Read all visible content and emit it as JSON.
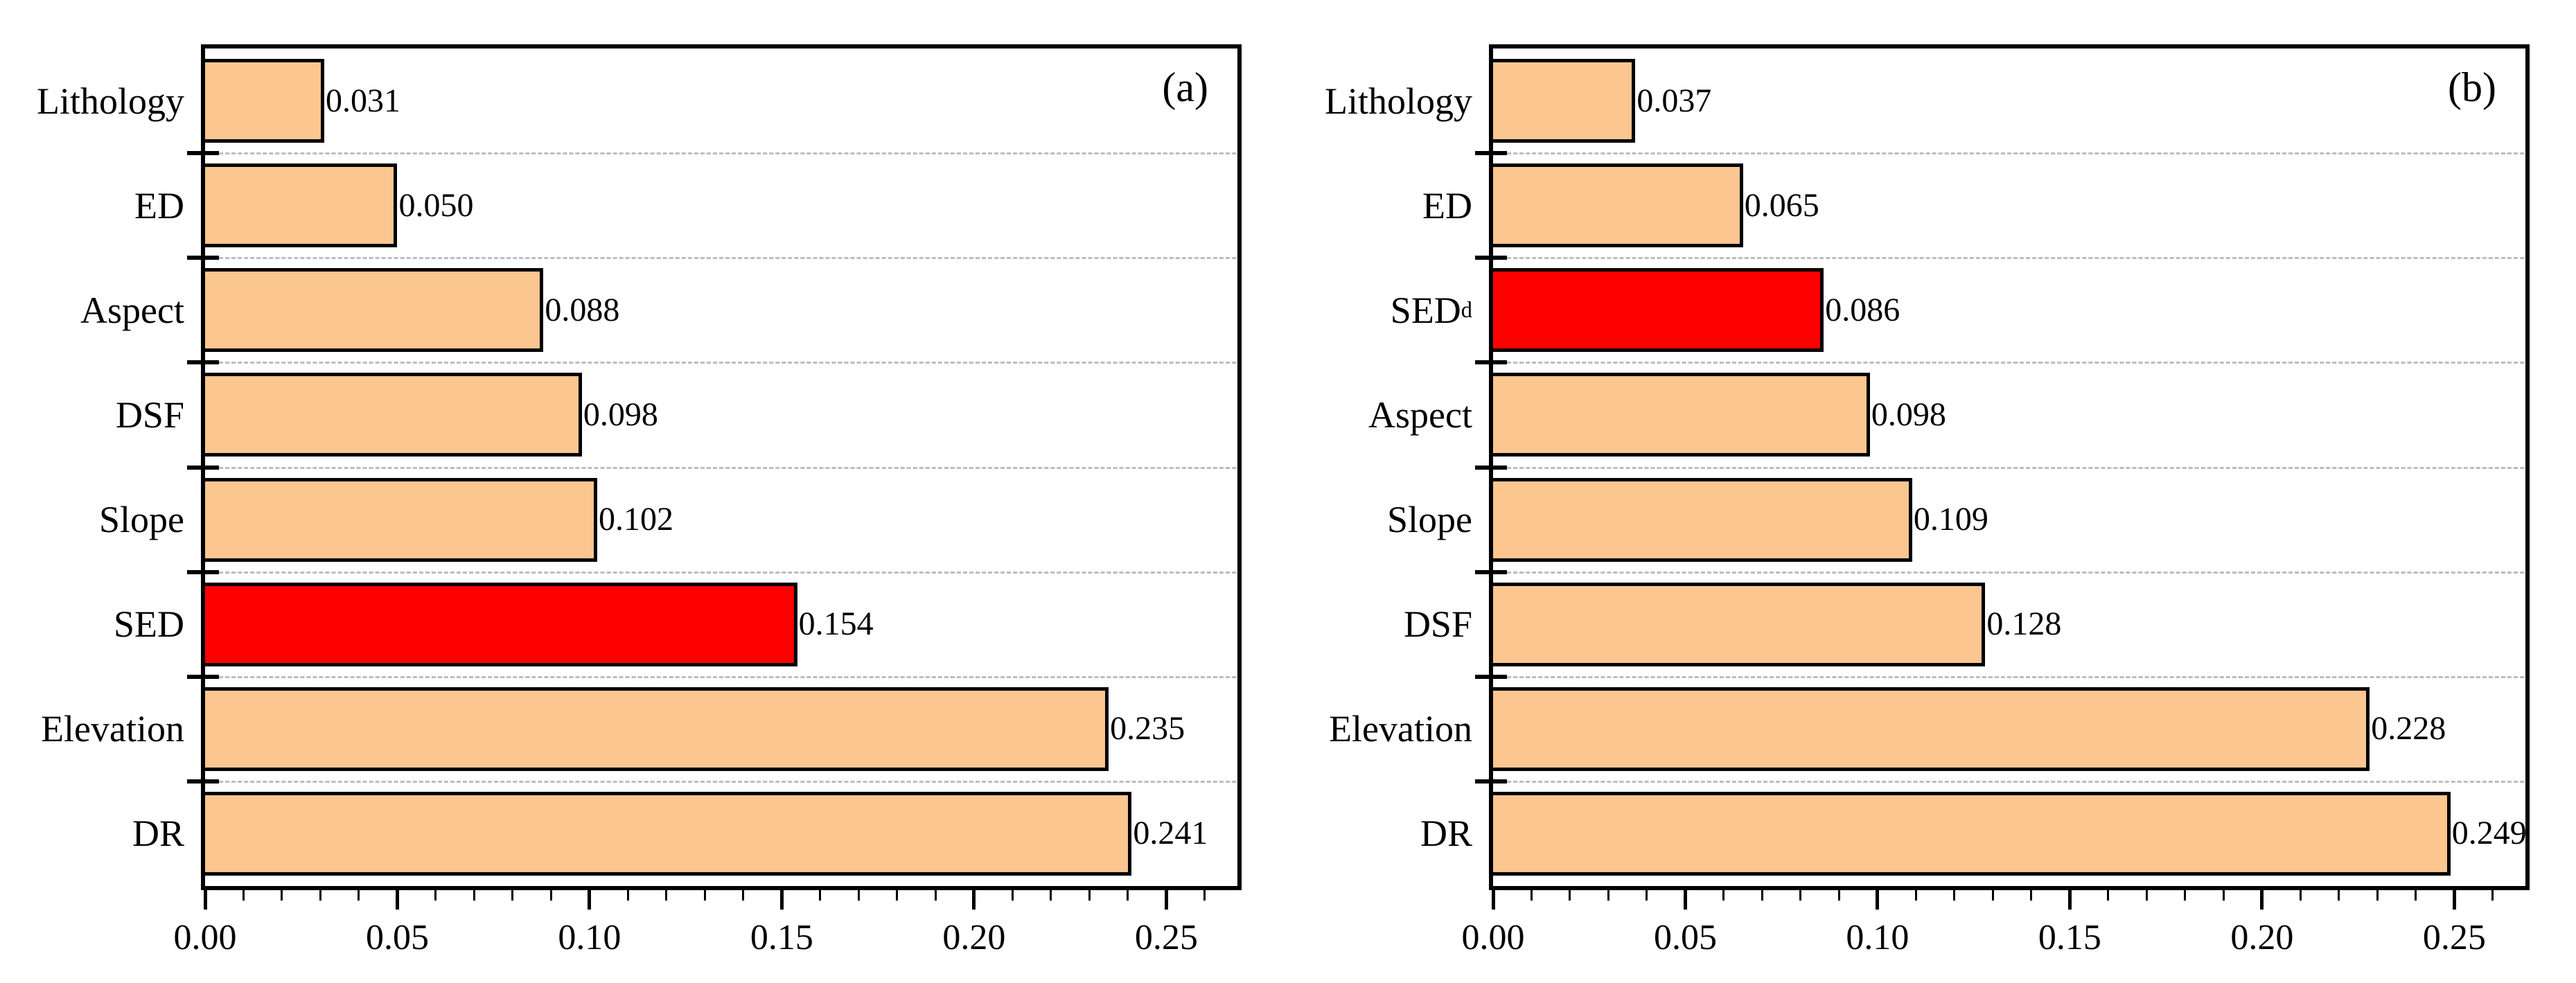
{
  "figure": {
    "background": "#ffffff"
  },
  "style": {
    "bar_fill": "#FBC690",
    "highlight_fill": "#FE0000",
    "bar_border": "#000000",
    "axis_color": "#000000",
    "grid_color": "#BDBDBD"
  },
  "chart_data": [
    {
      "type": "bar",
      "orientation": "horizontal",
      "panel_label": "(a)",
      "title": "",
      "xlabel": "",
      "ylabel": "",
      "grid": "dashed horizontal separators between categories",
      "legend": "none",
      "xlim": [
        0,
        0.2685
      ],
      "x_minor_step": 0.01,
      "x_major_ticks": [
        {
          "value": 0.0,
          "label": "0.00"
        },
        {
          "value": 0.05,
          "label": "0.05"
        },
        {
          "value": 0.1,
          "label": "0.10"
        },
        {
          "value": 0.15,
          "label": "0.15"
        },
        {
          "value": 0.2,
          "label": "0.20"
        },
        {
          "value": 0.25,
          "label": "0.25"
        }
      ],
      "categories": [
        {
          "text": "Lithology",
          "sup": ""
        },
        {
          "text": "ED",
          "sup": ""
        },
        {
          "text": "Aspect",
          "sup": ""
        },
        {
          "text": "DSF",
          "sup": ""
        },
        {
          "text": "Slope",
          "sup": ""
        },
        {
          "text": "SED",
          "sup": ""
        },
        {
          "text": "Elevation",
          "sup": ""
        },
        {
          "text": "DR",
          "sup": ""
        }
      ],
      "values": [
        0.031,
        0.05,
        0.088,
        0.098,
        0.102,
        0.154,
        0.235,
        0.241
      ],
      "value_labels": [
        "0.031",
        "0.050",
        "0.088",
        "0.098",
        "0.102",
        "0.154",
        "0.235",
        "0.241"
      ],
      "highlight_index": 5
    },
    {
      "type": "bar",
      "orientation": "horizontal",
      "panel_label": "(b)",
      "title": "",
      "xlabel": "",
      "ylabel": "",
      "grid": "dashed horizontal separators between categories",
      "legend": "none",
      "xlim": [
        0,
        0.2685
      ],
      "x_minor_step": 0.01,
      "x_major_ticks": [
        {
          "value": 0.0,
          "label": "0.00"
        },
        {
          "value": 0.05,
          "label": "0.05"
        },
        {
          "value": 0.1,
          "label": "0.10"
        },
        {
          "value": 0.15,
          "label": "0.15"
        },
        {
          "value": 0.2,
          "label": "0.20"
        },
        {
          "value": 0.25,
          "label": "0.25"
        }
      ],
      "categories": [
        {
          "text": "Lithology",
          "sup": ""
        },
        {
          "text": "ED",
          "sup": ""
        },
        {
          "text": "SED",
          "sup": "d"
        },
        {
          "text": "Aspect",
          "sup": ""
        },
        {
          "text": "Slope",
          "sup": ""
        },
        {
          "text": "DSF",
          "sup": ""
        },
        {
          "text": "Elevation",
          "sup": ""
        },
        {
          "text": "DR",
          "sup": ""
        }
      ],
      "values": [
        0.037,
        0.065,
        0.086,
        0.098,
        0.109,
        0.128,
        0.228,
        0.249
      ],
      "value_labels": [
        "0.037",
        "0.065",
        "0.086",
        "0.098",
        "0.109",
        "0.128",
        "0.228",
        "0.249"
      ],
      "highlight_index": 2
    }
  ]
}
